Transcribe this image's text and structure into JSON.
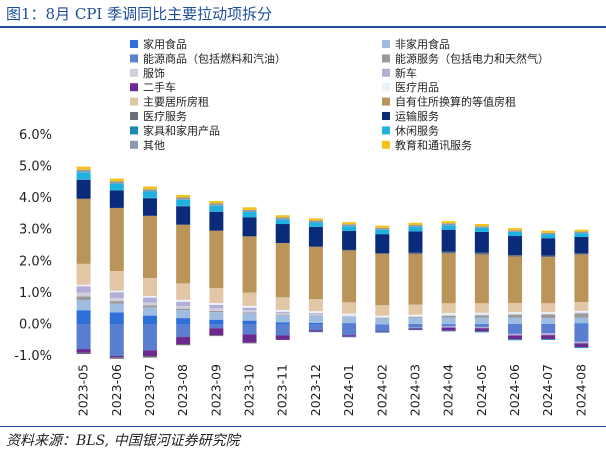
{
  "figure": {
    "title": "图1：8月 CPI 季调同比主要拉动项拆分",
    "source": "资料来源：BLS, 中国银河证券研究院"
  },
  "chart_data": {
    "type": "bar",
    "stacked": true,
    "title": "",
    "xlabel": "",
    "ylabel": "",
    "ylim": [
      -1.0,
      6.0
    ],
    "yticks": [
      "-1.0%",
      "0.0%",
      "1.0%",
      "2.0%",
      "3.0%",
      "4.0%",
      "5.0%",
      "6.0%"
    ],
    "categories": [
      "2023-05",
      "2023-06",
      "2023-07",
      "2023-08",
      "2023-09",
      "2023-10",
      "2023-11",
      "2023-12",
      "2024-01",
      "2024-02",
      "2024-03",
      "2024-04",
      "2024-05",
      "2024-06",
      "2024-07",
      "2024-08"
    ],
    "legend_position": "top",
    "series": [
      {
        "name": "家用食品",
        "color": "#2f6fd8",
        "values": [
          0.45,
          0.38,
          0.28,
          0.2,
          0.15,
          0.12,
          0.07,
          0.05,
          0.04,
          0.0,
          0.02,
          0.01,
          0.02,
          0.02,
          0.02,
          0.03
        ]
      },
      {
        "name": "非家用食品",
        "color": "#9fbde0",
        "values": [
          0.32,
          0.28,
          0.26,
          0.25,
          0.24,
          0.23,
          0.22,
          0.22,
          0.21,
          0.2,
          0.2,
          0.2,
          0.19,
          0.19,
          0.18,
          0.18
        ]
      },
      {
        "name": "能源商品（包括燃料和汽油）",
        "color": "#5b7fd0",
        "values": [
          -0.78,
          -1.0,
          -0.82,
          -0.4,
          -0.12,
          -0.32,
          -0.35,
          -0.18,
          -0.34,
          -0.22,
          -0.1,
          -0.06,
          -0.08,
          -0.3,
          -0.28,
          -0.55
        ]
      },
      {
        "name": "能源服务（包括电力和天然气）",
        "color": "#9a9a9a",
        "values": [
          0.12,
          0.08,
          0.06,
          0.05,
          0.04,
          0.03,
          0.02,
          0.01,
          0.0,
          0.01,
          0.02,
          0.06,
          0.08,
          0.1,
          0.12,
          0.14
        ]
      },
      {
        "name": "服饰",
        "color": "#d2cede",
        "values": [
          0.12,
          0.1,
          0.09,
          0.08,
          0.08,
          0.07,
          0.05,
          0.05,
          0.03,
          0.02,
          0.02,
          0.04,
          0.03,
          0.03,
          0.02,
          0.03
        ]
      },
      {
        "name": "新车",
        "color": "#b3aed8",
        "values": [
          0.2,
          0.18,
          0.16,
          0.14,
          0.11,
          0.08,
          0.04,
          0.03,
          0.0,
          0.0,
          -0.02,
          -0.04,
          -0.04,
          -0.05,
          -0.06,
          -0.05
        ]
      },
      {
        "name": "二手车",
        "color": "#6c2a8e",
        "values": [
          -0.12,
          -0.04,
          -0.18,
          -0.22,
          -0.22,
          -0.26,
          -0.14,
          -0.05,
          -0.05,
          -0.02,
          -0.04,
          -0.1,
          -0.1,
          -0.12,
          -0.12,
          -0.12
        ]
      },
      {
        "name": "医疗用品",
        "color": "#eaf2fb",
        "values": [
          0.05,
          0.05,
          0.05,
          0.06,
          0.06,
          0.06,
          0.06,
          0.06,
          0.06,
          0.05,
          0.05,
          0.05,
          0.05,
          0.05,
          0.05,
          0.05
        ]
      },
      {
        "name": "主要居所房租",
        "color": "#e3c6a6",
        "values": [
          0.66,
          0.62,
          0.57,
          0.52,
          0.47,
          0.42,
          0.4,
          0.38,
          0.36,
          0.33,
          0.32,
          0.31,
          0.3,
          0.29,
          0.28,
          0.28
        ]
      },
      {
        "name": "自有住所换算的等值房租",
        "color": "#bb945a",
        "values": [
          2.06,
          2.0,
          1.97,
          1.86,
          1.82,
          1.78,
          1.72,
          1.65,
          1.64,
          1.62,
          1.6,
          1.58,
          1.54,
          1.47,
          1.46,
          1.5
        ]
      },
      {
        "name": "医疗服务",
        "color": "#6b6f78",
        "values": [
          -0.04,
          -0.05,
          -0.05,
          -0.04,
          -0.03,
          -0.02,
          0.0,
          0.02,
          0.02,
          0.03,
          0.04,
          0.05,
          0.06,
          0.05,
          0.05,
          0.04
        ]
      },
      {
        "name": "运输服务",
        "color": "#0a2a7a",
        "values": [
          0.6,
          0.55,
          0.55,
          0.58,
          0.6,
          0.6,
          0.6,
          0.62,
          0.6,
          0.6,
          0.68,
          0.7,
          0.66,
          0.6,
          0.55,
          0.52
        ]
      },
      {
        "name": "家具和家用产品",
        "color": "#1f86b8",
        "values": [
          0.02,
          0.02,
          0.02,
          0.02,
          0.01,
          0.01,
          0.0,
          -0.01,
          -0.01,
          -0.02,
          -0.02,
          -0.02,
          -0.03,
          -0.03,
          -0.03,
          -0.03
        ]
      },
      {
        "name": "休闲服务",
        "color": "#1fb2e0",
        "values": [
          0.22,
          0.2,
          0.2,
          0.19,
          0.18,
          0.16,
          0.14,
          0.14,
          0.15,
          0.14,
          0.14,
          0.14,
          0.13,
          0.13,
          0.12,
          0.12
        ]
      },
      {
        "name": "其他",
        "color": "#8c9aae",
        "values": [
          0.08,
          0.07,
          0.07,
          0.07,
          0.07,
          0.07,
          0.07,
          0.06,
          0.06,
          0.06,
          0.06,
          0.06,
          0.05,
          0.05,
          0.05,
          0.05
        ]
      },
      {
        "name": "教育和通讯服务",
        "color": "#f2c21b",
        "values": [
          0.1,
          0.09,
          0.09,
          0.08,
          0.08,
          0.08,
          0.07,
          0.07,
          0.07,
          0.07,
          0.07,
          0.07,
          0.07,
          0.07,
          0.07,
          0.06
        ]
      }
    ]
  }
}
